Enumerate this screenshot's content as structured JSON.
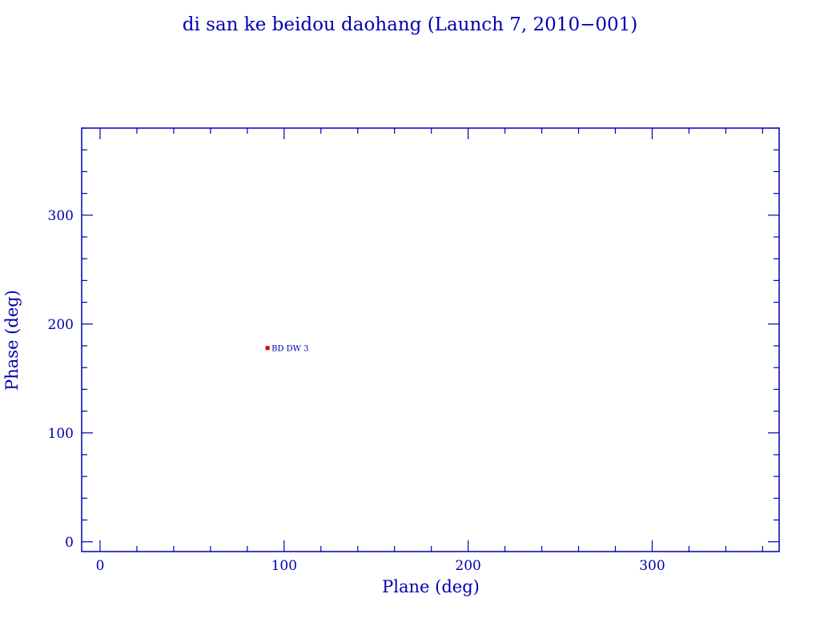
{
  "chart_data": {
    "type": "scatter",
    "title": "di san ke beidou daohang (Launch 7, 2010−001)",
    "xlabel": "Plane (deg)",
    "ylabel": "Phase (deg)",
    "xlim": [
      -10,
      369
    ],
    "ylim": [
      -9,
      380
    ],
    "xticks": [
      0,
      100,
      200,
      300
    ],
    "yticks": [
      0,
      100,
      200,
      300
    ],
    "minor_tick_step": 20,
    "grid": false,
    "points": [
      {
        "label": "BD DW 3",
        "x": 91,
        "y": 178
      }
    ],
    "colors": {
      "axes": "#0000b0",
      "point": "#e00000",
      "label": "#0000b0"
    }
  }
}
